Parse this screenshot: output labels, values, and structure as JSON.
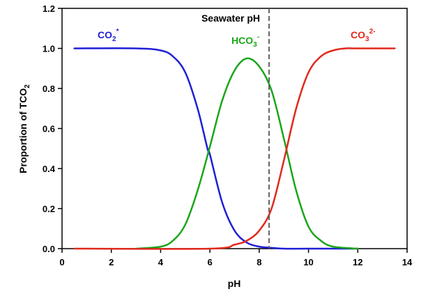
{
  "chart_data": {
    "type": "line",
    "xlabel": "pH",
    "ylabel": "Proportion of TCO",
    "ylabel_sub": "2",
    "xlim": [
      0,
      14
    ],
    "ylim": [
      0,
      1.2
    ],
    "x_ticks": [
      "0",
      "2",
      "4",
      "6",
      "8",
      "10",
      "12",
      "14"
    ],
    "y_ticks": [
      "0.0",
      "0.2",
      "0.4",
      "0.6",
      "0.8",
      "1.0",
      "1.2"
    ],
    "grid": false,
    "annotations": [
      {
        "text": "Seawater pH",
        "x": 8.4,
        "style": "dashed-vertical-line"
      }
    ],
    "series": [
      {
        "name": "CO",
        "name_sub": "2",
        "name_sup": "*",
        "color": "#1f1fd6",
        "x": [
          0.5,
          3.0,
          4.0,
          4.5,
          5.0,
          5.5,
          5.9,
          6.0,
          6.5,
          7.0,
          7.5,
          8.0,
          8.4,
          9.0,
          10.0,
          12.0
        ],
        "y": [
          1.0,
          1.0,
          0.99,
          0.96,
          0.88,
          0.7,
          0.5,
          0.47,
          0.23,
          0.09,
          0.03,
          0.01,
          0.005,
          0.0,
          0.0,
          0.0
        ]
      },
      {
        "name": "HCO",
        "name_sub": "3",
        "name_sup": "-",
        "color": "#1aa51a",
        "x": [
          3.0,
          4.0,
          4.5,
          5.0,
          5.5,
          6.0,
          6.5,
          7.0,
          7.5,
          8.0,
          8.5,
          9.0,
          9.5,
          10.0,
          10.5,
          11.0,
          12.0
        ],
        "y": [
          0.0,
          0.01,
          0.04,
          0.12,
          0.29,
          0.51,
          0.74,
          0.89,
          0.95,
          0.91,
          0.79,
          0.55,
          0.29,
          0.11,
          0.04,
          0.01,
          0.0
        ]
      },
      {
        "name": "CO",
        "name_sub": "3",
        "name_sup": "2-",
        "color": "#e0281c",
        "x": [
          0.5,
          6.0,
          7.0,
          7.5,
          8.0,
          8.5,
          9.0,
          9.5,
          10.0,
          10.5,
          11.0,
          11.5,
          12.0,
          13.5
        ],
        "y": [
          0.0,
          0.0,
          0.02,
          0.04,
          0.09,
          0.2,
          0.44,
          0.7,
          0.88,
          0.96,
          0.99,
          1.0,
          1.0,
          1.0
        ]
      }
    ]
  }
}
